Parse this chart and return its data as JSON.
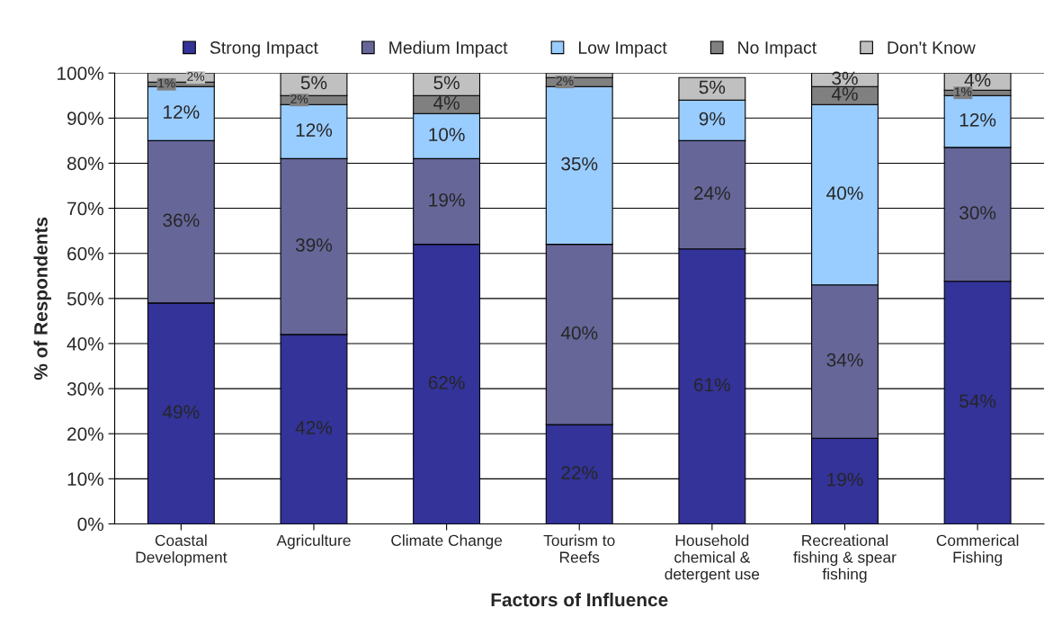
{
  "chart_data": {
    "type": "bar",
    "stacked": true,
    "xlabel": "Factors of Influence",
    "ylabel": "% of Respondents",
    "categories": [
      "Coastal\nDevelopment",
      "Agriculture",
      "Climate Change",
      "Tourism to\nReefs",
      "Household\nchemical &\ndetergent use",
      "Recreational\nfishing & spear\nfishing",
      "Commerical\nFishing"
    ],
    "series": [
      {
        "name": "Strong Impact",
        "color": "#333399",
        "values": [
          49,
          42,
          62,
          22,
          61,
          19,
          53.8
        ],
        "value_labels": [
          "49%",
          "42%",
          "62%",
          "22%",
          "61%",
          "19%",
          "54%"
        ]
      },
      {
        "name": "Medium Impact",
        "color": "#666699",
        "values": [
          36,
          39,
          19,
          40,
          24,
          34,
          29.7
        ],
        "value_labels": [
          "36%",
          "39%",
          "19%",
          "40%",
          "24%",
          "34%",
          "30%"
        ]
      },
      {
        "name": "Low Impact",
        "color": "#99ccff",
        "values": [
          12,
          12,
          10,
          35,
          9,
          40,
          11.5
        ],
        "value_labels": [
          "12%",
          "12%",
          "10%",
          "35%",
          "9%",
          "40%",
          "12%"
        ]
      },
      {
        "name": "No Impact",
        "color": "#808080",
        "values": [
          1,
          2,
          4,
          2,
          0,
          4,
          1.2
        ],
        "value_labels": [
          "1%",
          "2%",
          "4%",
          "2%",
          null,
          "4%",
          "1%"
        ]
      },
      {
        "name": "Don't Know",
        "color": "#c0c0c0",
        "values": [
          2,
          5,
          5,
          1,
          5,
          3,
          3.8
        ],
        "value_labels": [
          "2%",
          "5%",
          "5%",
          null,
          "5%",
          "3%",
          "4%"
        ]
      }
    ],
    "ylim": [
      0,
      100
    ],
    "yticks": [
      {
        "value": 0,
        "label": "0%"
      },
      {
        "value": 10,
        "label": "10%"
      },
      {
        "value": 20,
        "label": "20%"
      },
      {
        "value": 30,
        "label": "30%"
      },
      {
        "value": 40,
        "label": "40%"
      },
      {
        "value": 50,
        "label": "50%"
      },
      {
        "value": 60,
        "label": "60%"
      },
      {
        "value": 70,
        "label": "70%"
      },
      {
        "value": 80,
        "label": "80%"
      },
      {
        "value": 90,
        "label": "90%"
      },
      {
        "value": 100,
        "label": "100%"
      }
    ],
    "grid": "y",
    "legend": "top"
  }
}
